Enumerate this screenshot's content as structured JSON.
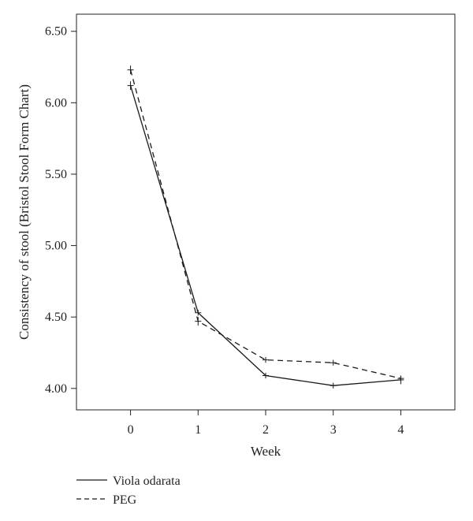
{
  "chart_data": {
    "type": "line",
    "title": "",
    "xlabel": "Week",
    "ylabel": "Consistency of stool (Bristol Stool Form Chart)",
    "x": [
      0,
      1,
      2,
      3,
      4
    ],
    "x_tick_labels": [
      "0",
      "1",
      "2",
      "3",
      "4"
    ],
    "xlim": [
      -0.8,
      4.8
    ],
    "ylim": [
      3.85,
      6.62
    ],
    "y_ticks": [
      4.0,
      4.5,
      5.0,
      5.5,
      6.0,
      6.5
    ],
    "y_tick_labels": [
      "4.00",
      "4.50",
      "5.00",
      "5.50",
      "6.00",
      "6.50"
    ],
    "grid": false,
    "legend_position": "bottom-left, below plot",
    "series": [
      {
        "name": "Viola odarata",
        "line_style": "solid",
        "color": "#1a1a1a",
        "values": [
          6.12,
          4.53,
          4.09,
          4.02,
          4.06
        ],
        "error": [
          0.03,
          0.02,
          0.02,
          0.02,
          0.03
        ]
      },
      {
        "name": "PEG",
        "line_style": "dashed",
        "color": "#1a1a1a",
        "values": [
          6.23,
          4.47,
          4.2,
          4.18,
          4.07
        ],
        "error": [
          0.03,
          0.03,
          0.02,
          0.02,
          0.02
        ]
      }
    ]
  }
}
